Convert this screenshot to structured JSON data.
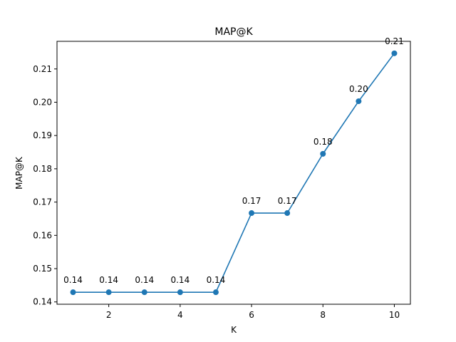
{
  "chart_data": {
    "type": "line",
    "title": "MAP@K",
    "xlabel": "K",
    "ylabel": "MAP@K",
    "x": [
      1,
      2,
      3,
      4,
      5,
      6,
      7,
      8,
      9,
      10
    ],
    "series": [
      {
        "values": [
          0.1429,
          0.1429,
          0.1429,
          0.1429,
          0.1429,
          0.1667,
          0.1667,
          0.1845,
          0.2003,
          0.2147
        ],
        "labels": [
          "0.14",
          "0.14",
          "0.14",
          "0.14",
          "0.14",
          "0.17",
          "0.17",
          "0.18",
          "0.20",
          "0.21"
        ],
        "color": "#1f77b4",
        "marker": "circle"
      }
    ],
    "xticks": [
      2,
      4,
      6,
      8,
      10
    ],
    "xtick_labels": [
      "2",
      "4",
      "6",
      "8",
      "10"
    ],
    "yticks": [
      0.14,
      0.15,
      0.16,
      0.17,
      0.18,
      0.19,
      0.2,
      0.21
    ],
    "ytick_labels": [
      "0.14",
      "0.15",
      "0.16",
      "0.17",
      "0.18",
      "0.19",
      "0.20",
      "0.21"
    ],
    "xlim": [
      0.55,
      10.45
    ],
    "ylim": [
      0.1393,
      0.2183
    ],
    "grid": false,
    "legend": "none"
  }
}
